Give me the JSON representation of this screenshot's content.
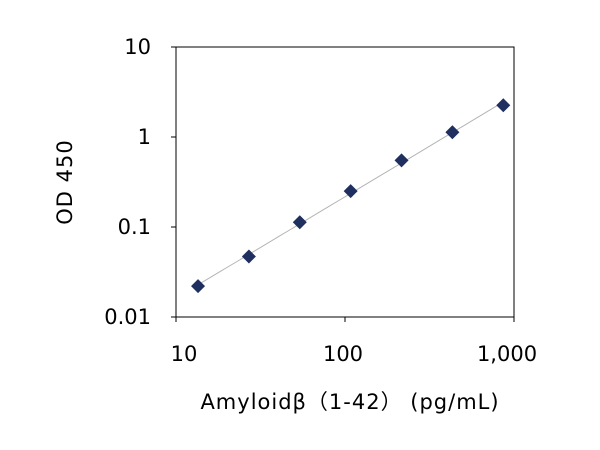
{
  "chart_data": {
    "type": "scatter",
    "title": "",
    "xlabel": "Amyloidβ（1-42） (pg/mL)",
    "ylabel": "OD 450",
    "x_scale": "log",
    "y_scale": "log",
    "xlim": [
      10,
      1000
    ],
    "ylim": [
      0.01,
      10
    ],
    "x_tick_labels": [
      "10",
      "100",
      "1,000"
    ],
    "y_tick_labels": [
      "10",
      "1",
      "0.1",
      "0.01"
    ],
    "grid": false,
    "legend": "none",
    "series": [
      {
        "x": [
          13.5,
          27,
          54,
          108,
          216,
          432,
          864
        ],
        "y": [
          0.022,
          0.047,
          0.113,
          0.25,
          0.55,
          1.13,
          2.25
        ]
      }
    ],
    "fit_line": true,
    "colors": {
      "marker": "#1f2f5f",
      "fit_line": "#b4b4b4",
      "axis": "#000000"
    },
    "marker_shape": "diamond"
  }
}
